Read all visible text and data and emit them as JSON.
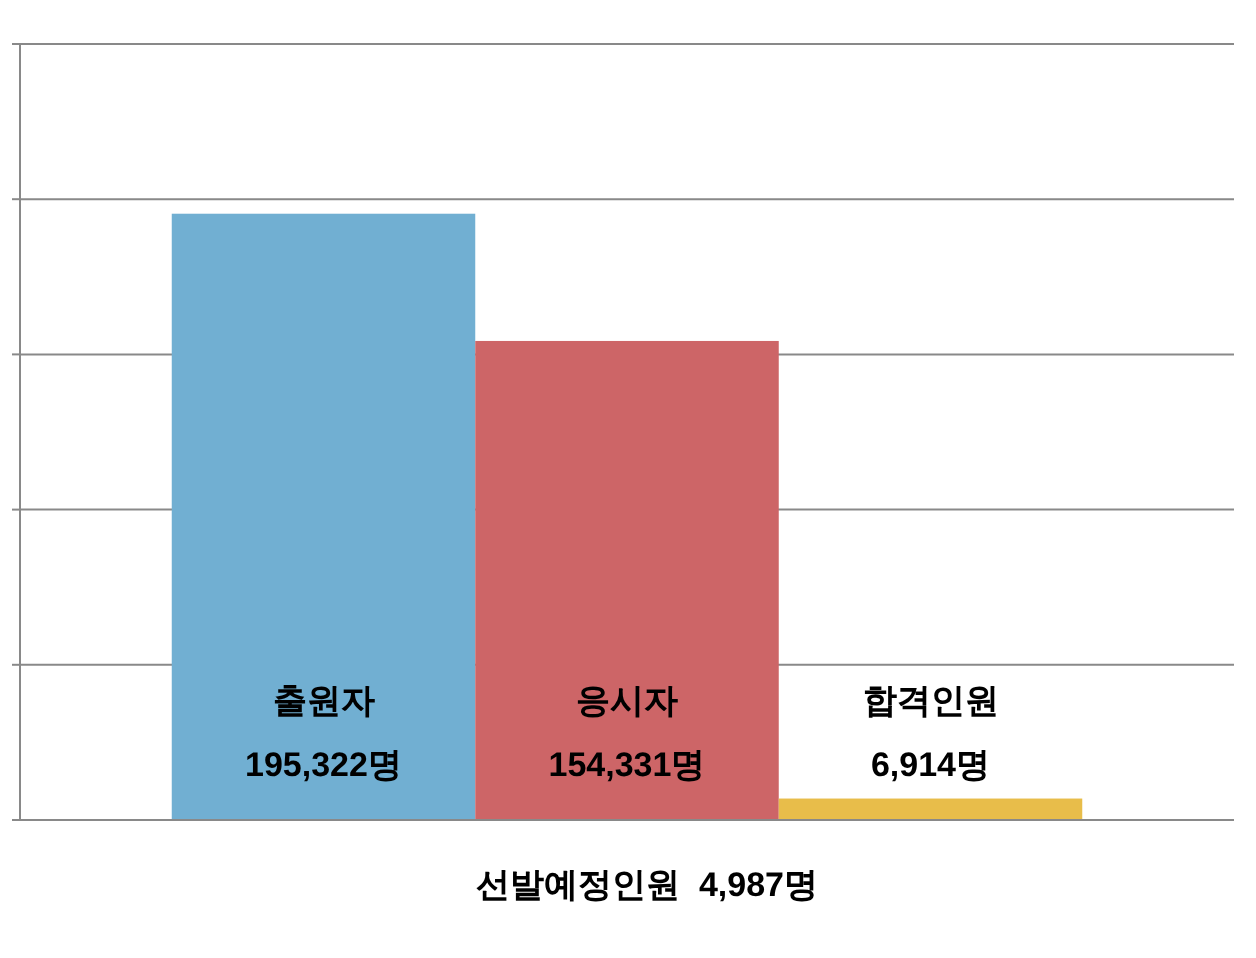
{
  "chart_data": {
    "type": "bar",
    "categories": [
      "출원자",
      "응시자",
      "합격인원"
    ],
    "values": [
      195322,
      154331,
      6914
    ],
    "colors": [
      "#71afd2",
      "#cd6567",
      "#e8bd4a"
    ],
    "value_labels": [
      "195,322명",
      "154,331명",
      "6,914명"
    ],
    "xlabel": "선발예정인원  4,987명",
    "ylim": [
      0,
      250000
    ],
    "yticks": [
      {
        "value": 0,
        "label": null
      },
      {
        "value": 50000,
        "label": null
      },
      {
        "value": 100000,
        "label": null
      },
      {
        "value": 150000,
        "label": null
      },
      {
        "value": 200000,
        "label": null
      },
      {
        "value": 250000,
        "label": null
      }
    ],
    "grid": "y"
  }
}
